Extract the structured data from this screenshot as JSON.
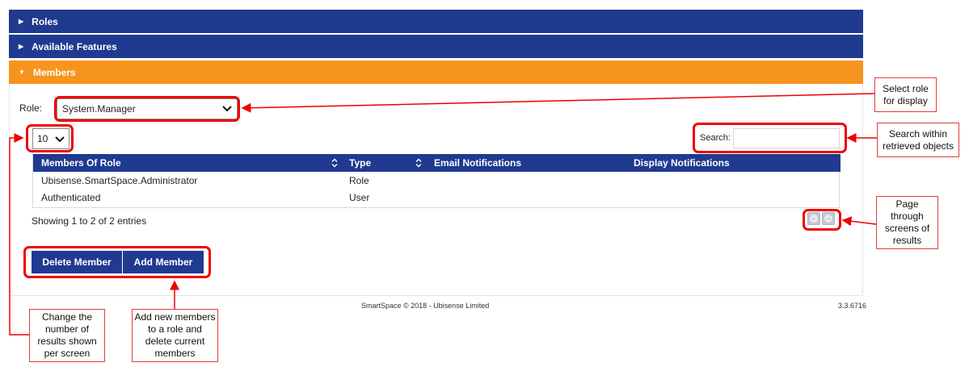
{
  "panels": {
    "roles": "Roles",
    "available_features": "Available Features",
    "members": "Members"
  },
  "role_filter": {
    "label": "Role:",
    "selected": "System.Manager"
  },
  "page_length": {
    "selected": "10"
  },
  "search": {
    "label": "Search:",
    "value": ""
  },
  "table": {
    "columns": [
      "Members Of Role",
      "Type",
      "Email Notifications",
      "Display Notifications"
    ],
    "rows": [
      {
        "member": "Ubisense.SmartSpace.Administrator",
        "type": "Role"
      },
      {
        "member": "Authenticated",
        "type": "User"
      }
    ],
    "info": "Showing 1 to 2 of 2 entries"
  },
  "buttons": {
    "delete": "Delete Member",
    "add": "Add Member"
  },
  "footer": {
    "copyright": "SmartSpace © 2018 - Ubisense Limited",
    "version": "3.3.6716"
  },
  "callouts": {
    "select_role": "Select role for display",
    "search_within": "Search within retrieved objects",
    "page_through": "Page through screens of results",
    "change_number": "Change the number of results shown per screen",
    "add_new": "Add new members to a role and delete current members"
  },
  "colors": {
    "header_blue": "#1f3a8f",
    "active_orange": "#f7941d",
    "callout_red": "#e00000"
  },
  "icons": [
    "caret-right-icon",
    "caret-down-icon",
    "chevron-down-icon",
    "sort-icon",
    "prev-page-icon",
    "next-page-icon"
  ]
}
